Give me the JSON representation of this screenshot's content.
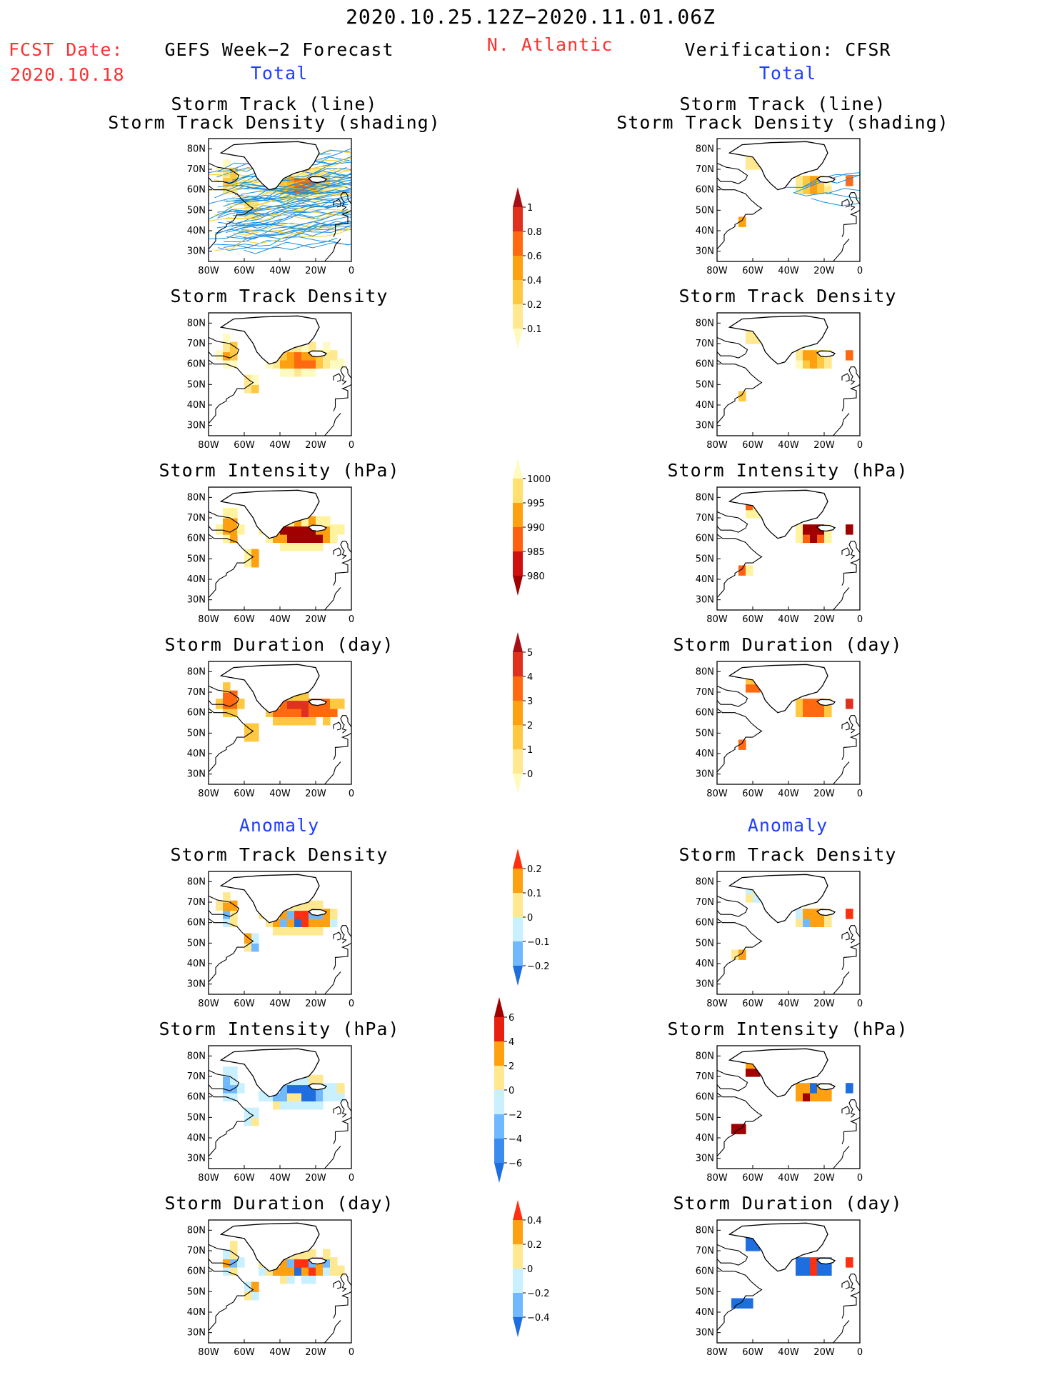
{
  "header": {
    "date_range": "2020.10.25.12Z−2020.11.01.06Z",
    "fcst_label": "FCST Date:",
    "fcst_date": "2020.10.18",
    "left_title": "GEFS Week−2 Forecast",
    "region": "N. Atlantic",
    "right_title": "Verification: CFSR",
    "total": "Total",
    "anomaly": "Anomaly"
  },
  "colors": {
    "red_text": "#ff3030",
    "blue_text": "#2040ff",
    "track_blue": "#1a8fe0",
    "track_yellow": "#f2d030"
  },
  "axes": {
    "lat_labels": [
      "80N",
      "70N",
      "60N",
      "50N",
      "40N",
      "30N"
    ],
    "lon_labels": [
      "80W",
      "60W",
      "40W",
      "20W",
      "0"
    ]
  },
  "panels": {
    "track_title_1": "Storm Track (line)",
    "track_title_2": "Storm Track Density (shading)",
    "density": "Storm Track Density",
    "intensity": "Storm Intensity (hPa)",
    "duration": "Storm Duration (day)"
  },
  "colorbars": [
    {
      "name": "density-total",
      "labels": [
        "1",
        "0.8",
        "0.6",
        "0.4",
        "0.2",
        "0.1"
      ],
      "colors": [
        "#a50f15",
        "#e0301e",
        "#ff6a10",
        "#ffa010",
        "#ffc840",
        "#ffe890",
        "#fffac0"
      ]
    },
    {
      "name": "intensity-total",
      "labels": [
        "1000",
        "995",
        "990",
        "985",
        "980"
      ],
      "colors": [
        "#fffac0",
        "#ffe070",
        "#ffa010",
        "#ff6010",
        "#d01010",
        "#a00000"
      ]
    },
    {
      "name": "duration-total",
      "labels": [
        "5",
        "4",
        "3",
        "2",
        "1",
        "0"
      ],
      "colors": [
        "#a50f15",
        "#e0301e",
        "#ff6a10",
        "#ffa010",
        "#ffc840",
        "#ffe890",
        "#fffac0"
      ]
    },
    {
      "name": "density-anom",
      "labels": [
        "0.2",
        "0.1",
        "0",
        "−0.1",
        "−0.2"
      ],
      "colors": [
        "#ff3010",
        "#ffa010",
        "#ffe890",
        "#c8f0ff",
        "#70b8ff",
        "#1e6ee0"
      ]
    },
    {
      "name": "intensity-anom",
      "labels": [
        "6",
        "4",
        "2",
        "0",
        "−2",
        "−4",
        "−6"
      ],
      "colors": [
        "#a00000",
        "#e82010",
        "#ffa010",
        "#ffe890",
        "#c8f0ff",
        "#70b8ff",
        "#3c8cf0",
        "#1e6ee0"
      ]
    },
    {
      "name": "duration-anom",
      "labels": [
        "0.4",
        "0.2",
        "0",
        "−0.2",
        "−0.4"
      ],
      "colors": [
        "#ff3010",
        "#ffa010",
        "#ffe890",
        "#c8f0ff",
        "#70b8ff",
        "#1e6ee0"
      ]
    }
  ]
}
